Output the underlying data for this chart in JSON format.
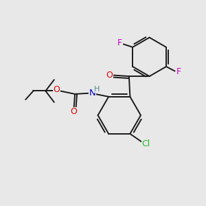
{
  "bg_color": "#e8e8e8",
  "bond_color": "#1a1a1a",
  "atom_colors": {
    "O": "#dd0000",
    "N": "#0000cc",
    "H": "#4a9090",
    "F": "#cc00cc",
    "Cl": "#22bb22"
  }
}
